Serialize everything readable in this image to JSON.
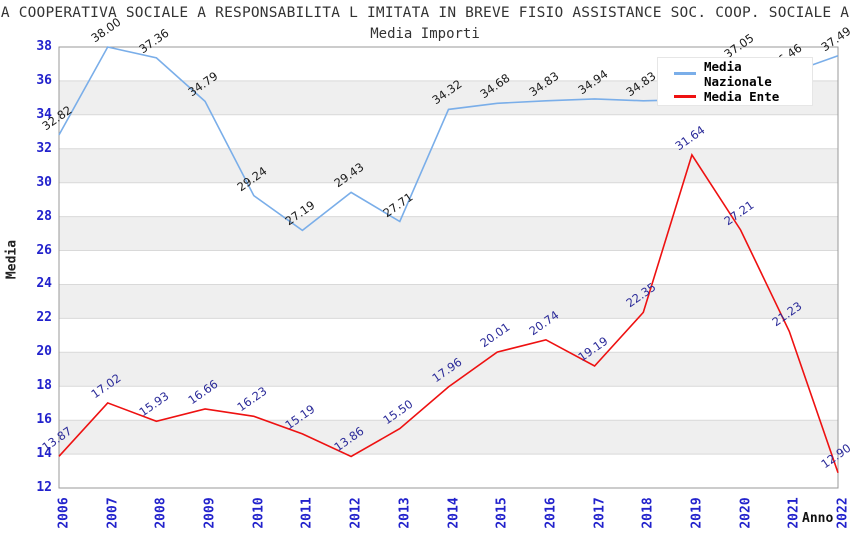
{
  "chart_data": {
    "type": "line",
    "title": "A COOPERATIVA SOCIALE A RESPONSABILITA L IMITATA IN BREVE FISIO ASSISTANCE SOC. COOP. SOCIALE A",
    "subtitle": "Media Importi",
    "xlabel": "Anno",
    "ylabel": "Media",
    "categories": [
      "2006",
      "2007",
      "2008",
      "2009",
      "2010",
      "2011",
      "2012",
      "2013",
      "2014",
      "2015",
      "2016",
      "2017",
      "2018",
      "2019",
      "2020",
      "2021",
      "2022"
    ],
    "ylim": [
      12,
      38
    ],
    "ytick_step": 2,
    "grid": "horizontal",
    "background_bands": true,
    "legend_position": "top-right",
    "series": [
      {
        "name": "Media Nazionale",
        "color": "#7AAEE9",
        "label_color": "#1A1A1A",
        "values": [
          32.82,
          38.0,
          37.36,
          34.79,
          29.24,
          27.19,
          29.43,
          27.71,
          34.32,
          34.68,
          34.83,
          34.94,
          34.83,
          34.9,
          37.05,
          36.46,
          37.49
        ],
        "point_labels": [
          "32.82",
          "38.00",
          "37.36",
          "34.79",
          "29.24",
          "27.19",
          "29.43",
          "27.71",
          "34.32",
          "34.68",
          "34.83",
          "34.94",
          "34.83",
          "",
          "37.05",
          "36.46",
          "37.49"
        ]
      },
      {
        "name": "Media Ente",
        "color": "#EE1111",
        "label_color": "#2B2B99",
        "values": [
          13.87,
          17.02,
          15.93,
          16.66,
          16.23,
          15.19,
          13.86,
          15.5,
          17.96,
          20.01,
          20.74,
          19.19,
          22.35,
          31.64,
          27.21,
          21.23,
          12.9
        ],
        "point_labels": [
          "13.87",
          "17.02",
          "15.93",
          "16.66",
          "16.23",
          "15.19",
          "13.86",
          "15.50",
          "17.96",
          "20.01",
          "20.74",
          "19.19",
          "22.35",
          "31.64",
          "27.21",
          "21.23",
          "12.90"
        ]
      }
    ],
    "colors": {
      "tick_label": "#2222CC",
      "band": "#EFEFEF",
      "grid": "#D9D9D9",
      "frame": "#999999",
      "title": "#333333"
    }
  }
}
